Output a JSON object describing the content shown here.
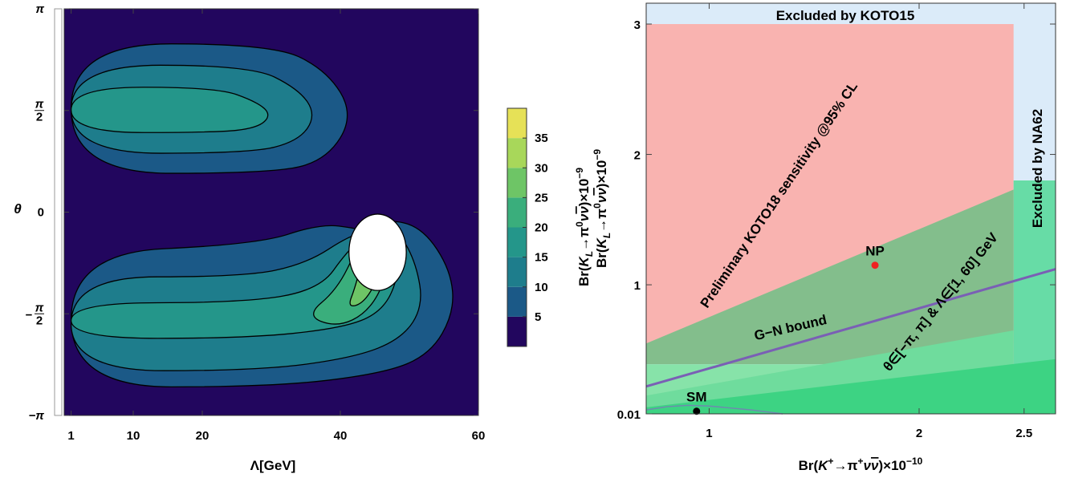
{
  "chart_data": [
    {
      "type": "contour",
      "xlabel": "Λ[GeV]",
      "ylabel": "θ",
      "xlim": [
        0,
        60
      ],
      "ylim": [
        -3.14159,
        3.14159
      ],
      "x_ticks": [
        {
          "v": 1,
          "label": "1"
        },
        {
          "v": 10,
          "label": "10"
        },
        {
          "v": 20,
          "label": "20"
        },
        {
          "v": 40,
          "label": "40"
        },
        {
          "v": 60,
          "label": "60"
        }
      ],
      "y_ticks": [
        {
          "v": 3.14159,
          "num": "π",
          "den": "",
          "sign": ""
        },
        {
          "v": 1.5708,
          "num": "π",
          "den": "2",
          "sign": ""
        },
        {
          "v": 0,
          "num": "0",
          "den": "",
          "sign": ""
        },
        {
          "v": -1.5708,
          "num": "π",
          "den": "2",
          "sign": "−"
        },
        {
          "v": -3.14159,
          "num": "π",
          "den": "",
          "sign": "−"
        }
      ],
      "colorbar": {
        "label_main": "Br(",
        "label_K": "K",
        "label_Ksub": "L",
        "label_arrow": "→π",
        "label_pisup": "0",
        "label_nu": "ν",
        "label_nubar": "ν",
        "label_tail": ")×10",
        "label_exp": "−9",
        "range": [
          0,
          40
        ],
        "levels": [
          0,
          5,
          10,
          15,
          20,
          25,
          30,
          35,
          40
        ],
        "tick_values": [
          5,
          10,
          15,
          20,
          25,
          30,
          35
        ],
        "colors": [
          "#22065e",
          "#1b5987",
          "#1e7d8c",
          "#24968a",
          "#3aae7c",
          "#6ec566",
          "#a8d75a",
          "#e6e157"
        ]
      },
      "regions": [
        {
          "level": 5,
          "polygon": [
            [
              1,
              2.6
            ],
            [
              30,
              2.6
            ],
            [
              38,
              2.2
            ],
            [
              42,
              1.5
            ],
            [
              38,
              0.8
            ],
            [
              30,
              0.6
            ],
            [
              1,
              0.6
            ]
          ]
        },
        {
          "level": 10,
          "polygon": [
            [
              1,
              2.27
            ],
            [
              27,
              2.27
            ],
            [
              34,
              1.9
            ],
            [
              36.5,
              1.5
            ],
            [
              34,
              1.1
            ],
            [
              27,
              0.91
            ],
            [
              1,
              0.91
            ]
          ]
        },
        {
          "level": 15,
          "polygon": [
            [
              1,
              1.93
            ],
            [
              22,
              1.93
            ],
            [
              28,
              1.7
            ],
            [
              30,
              1.5
            ],
            [
              28,
              1.3
            ],
            [
              22,
              1.23
            ],
            [
              1,
              1.23
            ]
          ]
        },
        {
          "level": 5,
          "polygon": [
            [
              44.5,
              -0.35
            ],
            [
              42.5,
              -0.25
            ],
            [
              37,
              -0.18
            ],
            [
              28,
              -0.5
            ],
            [
              1,
              -0.63
            ],
            [
              1,
              -2.7
            ],
            [
              30,
              -2.7
            ],
            [
              46,
              -2.5
            ],
            [
              53,
              -2.2
            ],
            [
              56.5,
              -1.55
            ],
            [
              56,
              -0.9
            ],
            [
              52,
              -0.25
            ],
            [
              47,
              -0.1
            ]
          ]
        },
        {
          "level": 10,
          "polygon": [
            [
              44.6,
              -0.3
            ],
            [
              41.5,
              -0.35
            ],
            [
              35,
              -0.8
            ],
            [
              26,
              -1.0
            ],
            [
              1,
              -1.0
            ],
            [
              1,
              -2.45
            ],
            [
              28,
              -2.45
            ],
            [
              42,
              -2.25
            ],
            [
              49,
              -1.95
            ],
            [
              52,
              -1.45
            ],
            [
              51,
              -0.8
            ],
            [
              48.5,
              -0.3
            ]
          ]
        },
        {
          "level": 15,
          "polygon": [
            [
              44.7,
              -0.25
            ],
            [
              41,
              -0.6
            ],
            [
              37,
              -1.2
            ],
            [
              26,
              -1.4
            ],
            [
              1,
              -1.4
            ],
            [
              1,
              -1.95
            ],
            [
              26,
              -1.95
            ],
            [
              40,
              -1.8
            ],
            [
              46,
              -1.55
            ],
            [
              48.5,
              -1.0
            ],
            [
              48,
              -0.45
            ],
            [
              47,
              -0.22
            ]
          ]
        },
        {
          "level": 20,
          "polygon": [
            [
              44.8,
              -0.22
            ],
            [
              42.5,
              -0.55
            ],
            [
              39.5,
              -1.2
            ],
            [
              35,
              -1.6
            ],
            [
              39.5,
              -1.78
            ],
            [
              44,
              -1.55
            ],
            [
              46.8,
              -1.0
            ],
            [
              47,
              -0.3
            ]
          ]
        },
        {
          "level": 25,
          "polygon": [
            [
              44.9,
              -0.2
            ],
            [
              43.6,
              -0.55
            ],
            [
              42.2,
              -1.15
            ],
            [
              41,
              -1.48
            ],
            [
              43.5,
              -1.4
            ],
            [
              45.8,
              -0.95
            ],
            [
              46.5,
              -0.3
            ]
          ]
        },
        {
          "level": 30,
          "polygon": [
            [
              45.0,
              -0.18
            ],
            [
              44.3,
              -0.6
            ],
            [
              43.5,
              -1.15
            ],
            [
              44.7,
              -1.2
            ],
            [
              45.7,
              -0.6
            ],
            [
              46.2,
              -0.25
            ]
          ]
        },
        {
          "level": 35,
          "polygon": [
            [
              45.2,
              -0.17
            ],
            [
              44.9,
              -0.6
            ],
            [
              44.6,
              -1.0
            ],
            [
              45.6,
              -0.75
            ],
            [
              46.0,
              -0.22
            ]
          ]
        },
        {
          "level": 99,
          "fill": "#ffffff",
          "ellipse": {
            "cx": 45.4,
            "cy": -0.62,
            "rx": 4.15,
            "ry": 0.59
          }
        }
      ]
    },
    {
      "type": "area",
      "xlabel_pre": "Br(",
      "xlabel_K": "K",
      "xlabel_Ksup": "+",
      "xlabel_arrow": "→π",
      "xlabel_pisup": "+",
      "xlabel_nu": "ν",
      "xlabel_nubar": "ν",
      "xlabel_post": ")×10",
      "xlabel_exp": "−10",
      "ylabel_pre": "Br(",
      "ylabel_K": "K",
      "ylabel_Ksub": "L",
      "ylabel_arrow": "→π",
      "ylabel_pisup": "0",
      "ylabel_nu": "ν",
      "ylabel_nubar": "ν",
      "ylabel_post": ")×10",
      "ylabel_exp": "−9",
      "xlim": [
        0.7,
        2.65
      ],
      "ylim": [
        0.01,
        3.16
      ],
      "x_ticks": [
        {
          "v": 1,
          "label": "1"
        },
        {
          "v": 2,
          "label": "2"
        },
        {
          "v": 2.5,
          "label": "2.5"
        }
      ],
      "y_ticks": [
        {
          "v": 0.01,
          "label": "0.01"
        },
        {
          "v": 1,
          "label": "1"
        },
        {
          "v": 2,
          "label": "2"
        },
        {
          "v": 3,
          "label": "3"
        }
      ],
      "regions": [
        {
          "name": "Excluded by KOTO15",
          "color": "#dbebf9",
          "polygon": [
            [
              0.7,
              0.01
            ],
            [
              2.65,
              0.01
            ],
            [
              2.65,
              3.16
            ],
            [
              0.7,
              3.16
            ]
          ]
        },
        {
          "name": "Preliminary KOTO18 sensitivity @95% CL",
          "color": "#f9b3b0",
          "polygon": [
            [
              0.7,
              0.55
            ],
            [
              0.7,
              3.0
            ],
            [
              2.45,
              3.0
            ],
            [
              2.45,
              0.55
            ]
          ]
        },
        {
          "name": "Excluded by NA62",
          "color": "#67dca6",
          "polygon": [
            [
              2.45,
              0.01
            ],
            [
              2.65,
              0.01
            ],
            [
              2.65,
              1.8
            ],
            [
              2.45,
              1.8
            ]
          ]
        },
        {
          "name": "θ∈[−π, π] & Λ∈[1, 60] GeV",
          "color": "#83be8c",
          "polygon": [
            [
              0.7,
              0.55
            ],
            [
              2.45,
              1.73
            ],
            [
              2.45,
              0.39
            ],
            [
              0.7,
              0.39
            ]
          ]
        },
        {
          "name": "",
          "color": "#87e3a9",
          "polygon": [
            [
              0.7,
              0.01
            ],
            [
              0.7,
              0.39
            ],
            [
              2.45,
              0.39
            ],
            [
              2.45,
              0.01
            ]
          ]
        },
        {
          "name": "",
          "color": "#6fdc9d",
          "polygon": [
            [
              0.7,
              0.15
            ],
            [
              2.45,
              0.65
            ],
            [
              2.45,
              0.01
            ],
            [
              0.7,
              0.01
            ]
          ]
        },
        {
          "name": "",
          "color": "#3dd383",
          "polygon": [
            [
              0.7,
              0.06
            ],
            [
              2.65,
              0.43
            ],
            [
              2.65,
              0.01
            ],
            [
              0.7,
              0.01
            ]
          ]
        }
      ],
      "gn_bound": {
        "label": "G−N bound",
        "color": "#7a5fb5",
        "label_color": "#e620d8",
        "points": [
          [
            0.7,
            0.22
          ],
          [
            2.65,
            1.12
          ]
        ]
      },
      "inner_curve": {
        "color": "#6f89b0",
        "points": [
          [
            0.7,
            0.04
          ],
          [
            0.8,
            0.065
          ],
          [
            0.9,
            0.075
          ],
          [
            1.0,
            0.07
          ],
          [
            1.1,
            0.055
          ],
          [
            1.2,
            0.04
          ],
          [
            1.3,
            0.02
          ],
          [
            1.35,
            0.01
          ]
        ]
      },
      "points": [
        {
          "label": "SM",
          "x": 0.94,
          "y": 0.03,
          "color": "#000000"
        },
        {
          "label": "NP",
          "x": 1.79,
          "y": 1.15,
          "color": "#ef2222"
        }
      ],
      "annotations": [
        {
          "key": "koto15",
          "text": "Excluded by KOTO15"
        },
        {
          "key": "na62",
          "text": "Excluded by NA62"
        },
        {
          "key": "koto18",
          "text": "Preliminary KOTO18 sensitivity @95% CL"
        },
        {
          "key": "range",
          "text": "θ∈[−π, π] & Λ∈[1, 60] GeV"
        }
      ]
    }
  ]
}
